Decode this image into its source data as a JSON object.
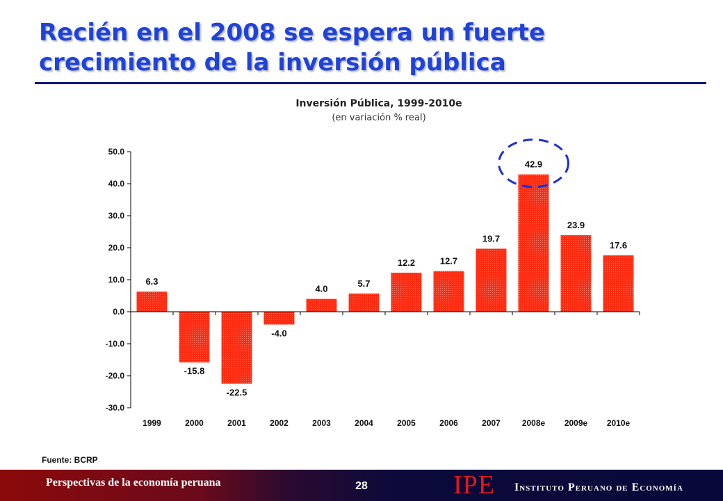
{
  "slide": {
    "title": "Recién en el 2008 se espera un fuerte crecimiento de la inversión pública",
    "source": "Fuente: BCRP",
    "footer_left": "Perspectivas de la economía peruana",
    "page_number": "28",
    "logo_text": "IPE",
    "institution": "Instituto Peruano de Economía"
  },
  "colors": {
    "title": "#1f43d9",
    "bar": "#ff2b10",
    "highlight_circle": "#1b2fd4"
  },
  "chart_data": {
    "type": "bar",
    "title": "Inversión Pública, 1999-2010e",
    "subtitle": "(en variación % real)",
    "categories": [
      "1999",
      "2000",
      "2001",
      "2002",
      "2003",
      "2004",
      "2005",
      "2006",
      "2007",
      "2008e",
      "2009e",
      "2010e"
    ],
    "values": [
      6.3,
      -15.8,
      -22.5,
      -4.0,
      4.0,
      5.7,
      12.2,
      12.7,
      19.7,
      42.9,
      23.9,
      17.6
    ],
    "value_labels": [
      "6.3",
      "-15.8",
      "-22.5",
      "-4.0",
      "4.0",
      "5.7",
      "12.2",
      "12.7",
      "19.7",
      "42.9",
      "23.9",
      "17.6"
    ],
    "y_ticks": [
      "50.0",
      "40.0",
      "30.0",
      "20.0",
      "10.0",
      "0.0",
      "-10.0",
      "-20.0",
      "-30.0"
    ],
    "ylim": [
      -30,
      50
    ],
    "xlabel": "",
    "ylabel": "",
    "grid": false,
    "legend": "none",
    "highlighted_category": "2008e"
  }
}
